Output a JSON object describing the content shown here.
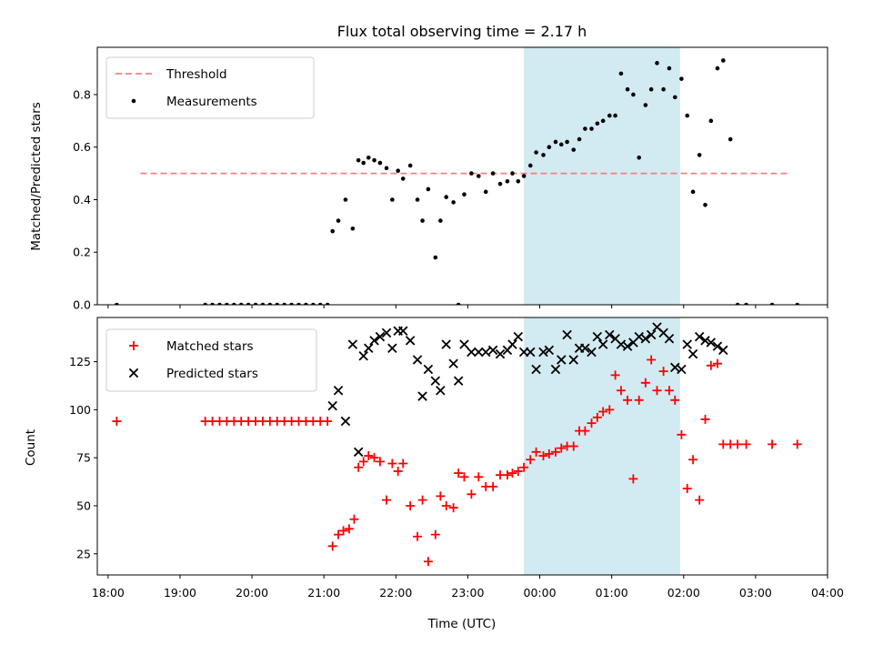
{
  "chart_data": [
    {
      "type": "scatter",
      "title": "Flux total observing time = 2.17 h",
      "xlabel": "",
      "ylabel": "Matched/Predicted stars",
      "xlim": [
        17.85,
        28.0
      ],
      "ylim": [
        0.0,
        0.98
      ],
      "yticks": [
        0.0,
        0.2,
        0.4,
        0.6,
        0.8
      ],
      "ytick_labels": [
        "0.0",
        "0.2",
        "0.4",
        "0.6",
        "0.8"
      ],
      "shaded_span": [
        23.78,
        25.95
      ],
      "shade_color": "#add8e6",
      "grid": false,
      "legend": {
        "position": "upper left",
        "entries": [
          "Threshold",
          "Measurements"
        ]
      },
      "series": [
        {
          "name": "Threshold",
          "kind": "dashed-line",
          "color": "#f08080",
          "x": [
            18.45,
            27.45
          ],
          "y": [
            0.5,
            0.5
          ]
        },
        {
          "name": "Measurements",
          "kind": "dot",
          "color": "#000000",
          "x": [
            18.12,
            19.35,
            19.45,
            19.55,
            19.65,
            19.75,
            19.85,
            19.95,
            20.05,
            20.15,
            20.25,
            20.35,
            20.45,
            20.55,
            20.65,
            20.75,
            20.85,
            20.95,
            21.05,
            21.12,
            21.2,
            21.3,
            21.4,
            21.48,
            21.55,
            21.62,
            21.7,
            21.78,
            21.87,
            21.95,
            22.03,
            22.1,
            22.2,
            22.3,
            22.37,
            22.45,
            22.55,
            22.62,
            22.7,
            22.8,
            22.87,
            22.95,
            23.05,
            23.15,
            23.25,
            23.35,
            23.45,
            23.55,
            23.62,
            23.7,
            23.78,
            23.87,
            23.95,
            24.05,
            24.13,
            24.22,
            24.3,
            24.38,
            24.47,
            24.55,
            24.63,
            24.72,
            24.8,
            24.88,
            24.97,
            25.05,
            25.13,
            25.22,
            25.3,
            25.38,
            25.47,
            25.55,
            25.63,
            25.72,
            25.8,
            25.88,
            25.97,
            26.05,
            26.13,
            26.22,
            26.3,
            26.38,
            26.47,
            26.55,
            26.65,
            26.75,
            26.87,
            27.23,
            27.58
          ],
          "y": [
            0.0,
            0.0,
            0.0,
            0.0,
            0.0,
            0.0,
            0.0,
            0.0,
            0.0,
            0.0,
            0.0,
            0.0,
            0.0,
            0.0,
            0.0,
            0.0,
            0.0,
            0.0,
            0.0,
            0.28,
            0.32,
            0.4,
            0.29,
            0.55,
            0.54,
            0.56,
            0.55,
            0.54,
            0.52,
            0.4,
            0.51,
            0.48,
            0.53,
            0.4,
            0.32,
            0.44,
            0.18,
            0.32,
            0.41,
            0.39,
            0.0,
            0.42,
            0.5,
            0.49,
            0.43,
            0.5,
            0.46,
            0.47,
            0.5,
            0.47,
            0.49,
            0.53,
            0.58,
            0.57,
            0.6,
            0.62,
            0.61,
            0.62,
            0.59,
            0.63,
            0.67,
            0.67,
            0.69,
            0.7,
            0.72,
            0.72,
            0.88,
            0.82,
            0.8,
            0.56,
            0.76,
            0.82,
            0.92,
            0.82,
            0.9,
            0.79,
            0.86,
            0.72,
            0.43,
            0.57,
            0.38,
            0.7,
            0.9,
            0.93,
            0.63,
            0.0,
            0.0,
            0.0,
            0.0
          ]
        }
      ]
    },
    {
      "type": "scatter",
      "title": "",
      "xlabel": "Time (UTC)",
      "ylabel": "Count",
      "xlim": [
        17.85,
        28.0
      ],
      "ylim": [
        14,
        148
      ],
      "yticks": [
        25,
        50,
        75,
        100,
        125
      ],
      "ytick_labels": [
        "25",
        "50",
        "75",
        "100",
        "125"
      ],
      "xticks": [
        18,
        19,
        20,
        21,
        22,
        23,
        24,
        25,
        26,
        27,
        28
      ],
      "xtick_labels": [
        "18:00",
        "19:00",
        "20:00",
        "21:00",
        "22:00",
        "23:00",
        "00:00",
        "01:00",
        "02:00",
        "03:00",
        "04:00"
      ],
      "shaded_span": [
        23.78,
        25.95
      ],
      "shade_color": "#add8e6",
      "grid": false,
      "legend": {
        "position": "upper left",
        "entries": [
          "Matched stars",
          "Predicted stars"
        ]
      },
      "series": [
        {
          "name": "Matched stars",
          "kind": "plus",
          "color": "#ff0000",
          "x": [
            18.12,
            19.35,
            19.45,
            19.55,
            19.65,
            19.75,
            19.85,
            19.95,
            20.05,
            20.15,
            20.25,
            20.35,
            20.45,
            20.55,
            20.65,
            20.75,
            20.85,
            20.95,
            21.05,
            21.12,
            21.2,
            21.27,
            21.35,
            21.42,
            21.48,
            21.55,
            21.62,
            21.7,
            21.78,
            21.87,
            21.95,
            22.03,
            22.1,
            22.2,
            22.3,
            22.37,
            22.45,
            22.55,
            22.62,
            22.7,
            22.8,
            22.87,
            22.95,
            23.05,
            23.15,
            23.25,
            23.35,
            23.45,
            23.55,
            23.62,
            23.7,
            23.78,
            23.87,
            23.95,
            24.05,
            24.13,
            24.22,
            24.3,
            24.38,
            24.47,
            24.55,
            24.63,
            24.72,
            24.8,
            24.88,
            24.97,
            25.05,
            25.13,
            25.22,
            25.3,
            25.38,
            25.47,
            25.55,
            25.63,
            25.72,
            25.8,
            25.88,
            25.97,
            26.05,
            26.13,
            26.22,
            26.3,
            26.38,
            26.47,
            26.55,
            26.65,
            26.75,
            26.87,
            27.23,
            27.58
          ],
          "y": [
            94,
            94,
            94,
            94,
            94,
            94,
            94,
            94,
            94,
            94,
            94,
            94,
            94,
            94,
            94,
            94,
            94,
            94,
            94,
            29,
            35,
            37,
            38,
            43,
            70,
            73,
            76,
            75,
            73,
            53,
            72,
            68,
            72,
            50,
            34,
            53,
            21,
            35,
            55,
            50,
            49,
            67,
            65,
            56,
            65,
            60,
            60,
            66,
            66,
            67,
            68,
            70,
            74,
            78,
            76,
            77,
            78,
            80,
            81,
            81,
            89,
            89,
            93,
            96,
            99,
            100,
            118,
            110,
            105,
            64,
            105,
            114,
            126,
            110,
            120,
            110,
            105,
            87,
            59,
            74,
            53,
            95,
            123,
            124,
            82,
            82,
            82,
            82,
            82,
            82
          ]
        },
        {
          "name": "Predicted stars",
          "kind": "x",
          "color": "#000000",
          "x": [
            21.12,
            21.2,
            21.3,
            21.4,
            21.48,
            21.55,
            21.62,
            21.7,
            21.78,
            21.87,
            21.95,
            22.03,
            22.1,
            22.2,
            22.3,
            22.37,
            22.45,
            22.55,
            22.62,
            22.7,
            22.8,
            22.87,
            22.95,
            23.05,
            23.15,
            23.25,
            23.35,
            23.45,
            23.55,
            23.62,
            23.7,
            23.78,
            23.87,
            23.95,
            24.05,
            24.13,
            24.22,
            24.3,
            24.38,
            24.47,
            24.55,
            24.63,
            24.72,
            24.8,
            24.88,
            24.97,
            25.05,
            25.13,
            25.22,
            25.3,
            25.38,
            25.47,
            25.55,
            25.63,
            25.72,
            25.8,
            25.88,
            25.97,
            26.05,
            26.13,
            26.22,
            26.3,
            26.38,
            26.47,
            26.55
          ],
          "y": [
            102,
            110,
            94,
            134,
            78,
            128,
            132,
            136,
            138,
            140,
            132,
            141,
            141,
            136,
            126,
            107,
            121,
            115,
            110,
            134,
            124,
            115,
            134,
            130,
            130,
            130,
            131,
            129,
            131,
            134,
            138,
            130,
            130,
            121,
            130,
            131,
            121,
            126,
            139,
            126,
            132,
            132,
            130,
            138,
            134,
            139,
            137,
            134,
            133,
            135,
            138,
            137,
            139,
            143,
            140,
            137,
            122,
            121,
            134,
            129,
            138,
            136,
            135,
            133,
            131
          ]
        }
      ]
    }
  ]
}
